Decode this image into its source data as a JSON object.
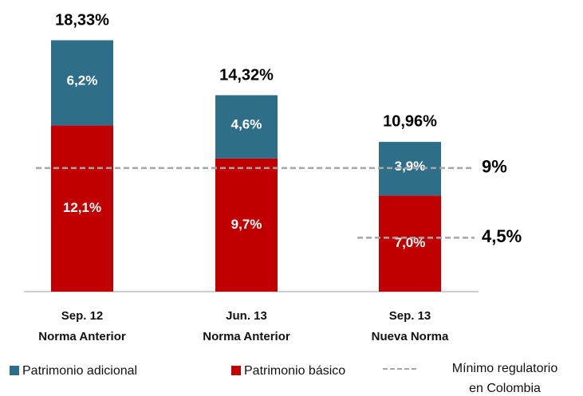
{
  "chart_data": {
    "type": "stacked_bar",
    "categories": [
      [
        "Sep. 12",
        "Norma Anterior"
      ],
      [
        "Jun. 13",
        "Norma Anterior"
      ],
      [
        "Sep. 13",
        "Nueva Norma"
      ]
    ],
    "series": [
      {
        "name": "Patrimonio adicional",
        "color": "#2e6e88",
        "values": [
          6.2,
          4.6,
          3.9
        ],
        "value_labels": [
          "6,2%",
          "4,6%",
          "3,9%"
        ]
      },
      {
        "name": "Patrimonio básico",
        "color": "#c00000",
        "values": [
          12.1,
          9.7,
          7.0
        ],
        "value_labels": [
          "12,1%",
          "9,7%",
          "7,0%"
        ]
      }
    ],
    "totals": [
      18.33,
      14.32,
      10.96
    ],
    "total_labels": [
      "18,33%",
      "14,32%",
      "10,96%"
    ],
    "reference_lines": [
      {
        "value": 9,
        "label": "9%"
      },
      {
        "value": 4.5,
        "label": "4,5%"
      }
    ],
    "reference_legend": [
      "Mínimo regulatorio",
      "en Colombia"
    ],
    "reference_color": "#a6a6a6"
  }
}
